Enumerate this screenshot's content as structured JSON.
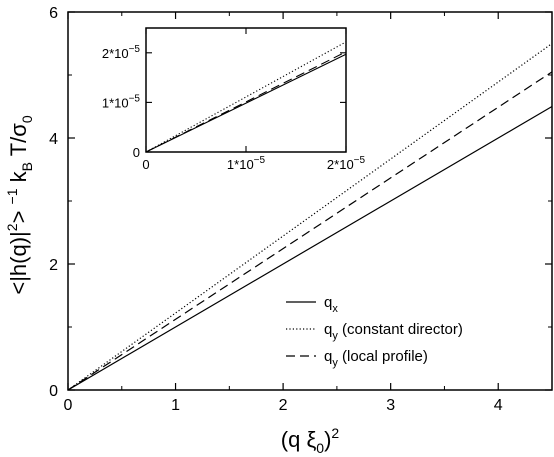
{
  "chart_data": {
    "type": "line",
    "xlabel_base": "(q ξ",
    "xlabel_sub": "0",
    "xlabel_close": ")",
    "xlabel_sup": "2",
    "ylabel_text": "<|h(q)|",
    "ylabel_sup1": "2",
    "ylabel_mid": "> ",
    "ylabel_sup2": "−1",
    "ylabel_kb": " k",
    "ylabel_kb_sub": "B",
    "ylabel_tail": " T/σ",
    "ylabel_sigma_sub": "0",
    "xlim": [
      0,
      4.5
    ],
    "ylim": [
      0,
      6
    ],
    "x_ticks": [
      "0",
      "1",
      "2",
      "3",
      "4"
    ],
    "y_ticks": [
      "0",
      "2",
      "4",
      "6"
    ],
    "series": [
      {
        "name_base": "q",
        "name_sub": "x",
        "name_rest": "",
        "style": "solid",
        "x": [
          0,
          4.5
        ],
        "y": [
          0,
          4.5
        ]
      },
      {
        "name_base": "q",
        "name_sub": "y",
        "name_rest": " (constant director)",
        "style": "dotted",
        "x": [
          0,
          4.5
        ],
        "y": [
          0,
          5.5
        ]
      },
      {
        "name_base": "q",
        "name_sub": "y",
        "name_rest": " (local profile)",
        "style": "dashed",
        "x": [
          0,
          4.5
        ],
        "y": [
          0,
          5.05
        ]
      }
    ],
    "inset": {
      "xlim": [
        0,
        2e-05
      ],
      "ylim": [
        0,
        2.5e-05
      ],
      "x_ticks": [
        "0",
        "1*10",
        "2*10"
      ],
      "x_ticks_exp": [
        "",
        "−5",
        "−5"
      ],
      "y_ticks": [
        "0",
        "1*10",
        "2*10"
      ],
      "y_ticks_exp": [
        "",
        "−5",
        "−5"
      ],
      "series": [
        {
          "style": "solid",
          "x": [
            0,
            2e-05
          ],
          "y": [
            0,
            1.97e-05
          ]
        },
        {
          "style": "dotted",
          "x": [
            0,
            2e-05
          ],
          "y": [
            0,
            2.22e-05
          ]
        },
        {
          "style": "dashed",
          "x": [
            0,
            2e-05
          ],
          "y": [
            0,
            2.02e-05
          ]
        }
      ]
    }
  }
}
